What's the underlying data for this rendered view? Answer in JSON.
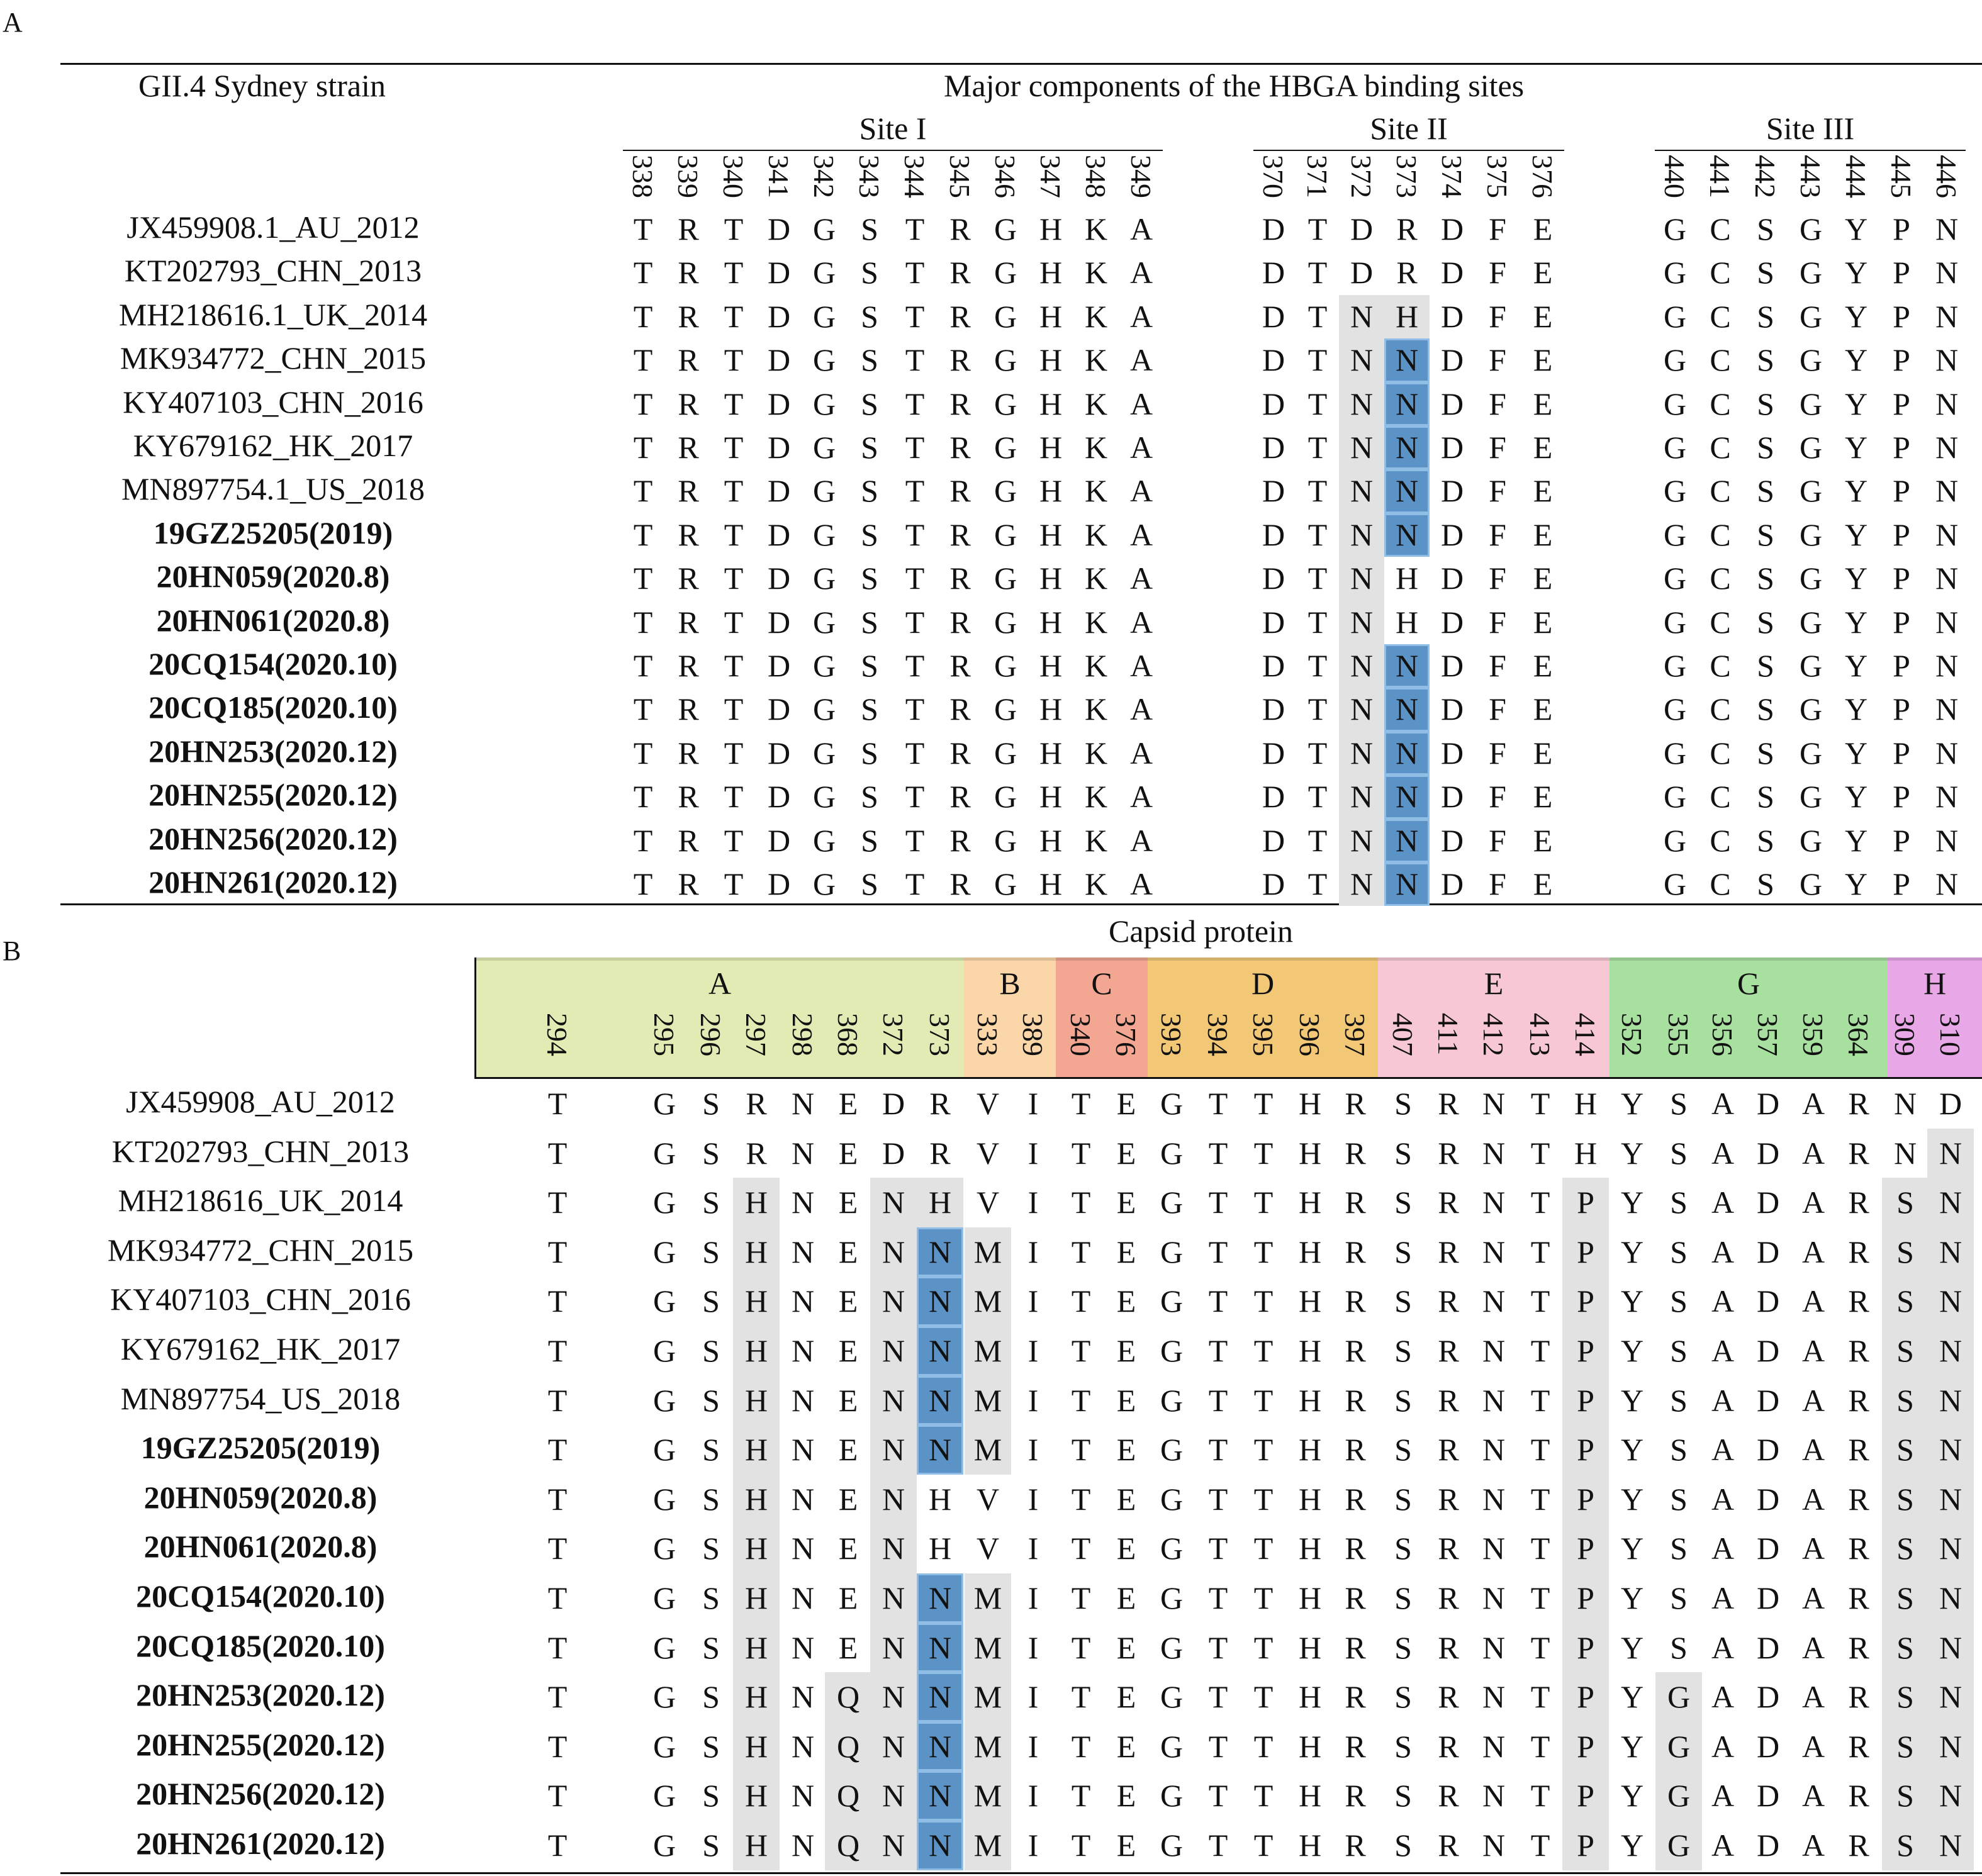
{
  "panel_a": {
    "letter": "A",
    "strain_header": "GII.4 Sydney strain",
    "main_header": "Major components of the HBGA binding sites",
    "sites": [
      {
        "name": "Site I",
        "positions": [
          "338",
          "339",
          "340",
          "341",
          "342",
          "343",
          "344",
          "345",
          "346",
          "347",
          "348",
          "349"
        ]
      },
      {
        "name": "Site II",
        "positions": [
          "370",
          "371",
          "372",
          "373",
          "374",
          "375",
          "376"
        ]
      },
      {
        "name": "Site III",
        "positions": [
          "440",
          "441",
          "442",
          "443",
          "444",
          "445",
          "446"
        ]
      }
    ],
    "rows": [
      {
        "strain": "JX459908.1_AU_2012",
        "bold": false,
        "site1": "TRTDGSTRGHKA",
        "site2": "DTDRDFE",
        "site3": "GCSGYPN"
      },
      {
        "strain": "KT202793_CHN_2013",
        "bold": false,
        "site1": "TRTDGSTRGHKA",
        "site2": "DTDRDFE",
        "site3": "GCSGYPN"
      },
      {
        "strain": "MH218616.1_UK_2014",
        "bold": false,
        "site1": "TRTDGSTRGHKA",
        "site2": "DTNHDFE",
        "site3": "GCSGYPN"
      },
      {
        "strain": "MK934772_CHN_2015",
        "bold": false,
        "site1": "TRTDGSTRGHKA",
        "site2": "DTNNDFE",
        "site3": "GCSGYPN"
      },
      {
        "strain": "KY407103_CHN_2016",
        "bold": false,
        "site1": "TRTDGSTRGHKA",
        "site2": "DTNNDFE",
        "site3": "GCSGYPN"
      },
      {
        "strain": "KY679162_HK_2017",
        "bold": false,
        "site1": "TRTDGSTRGHKA",
        "site2": "DTNNDFE",
        "site3": "GCSGYPN"
      },
      {
        "strain": "MN897754.1_US_2018",
        "bold": false,
        "site1": "TRTDGSTRGHKA",
        "site2": "DTNNDFE",
        "site3": "GCSGYPN"
      },
      {
        "strain": "19GZ25205(2019)",
        "bold": true,
        "site1": "TRTDGSTRGHKA",
        "site2": "DTNNDFE",
        "site3": "GCSGYPN"
      },
      {
        "strain": "20HN059(2020.8)",
        "bold": true,
        "site1": "TRTDGSTRGHKA",
        "site2": "DTNHDFE",
        "site3": "GCSGYPN"
      },
      {
        "strain": "20HN061(2020.8)",
        "bold": true,
        "site1": "TRTDGSTRGHKA",
        "site2": "DTNHDFE",
        "site3": "GCSGYPN"
      },
      {
        "strain": "20CQ154(2020.10)",
        "bold": true,
        "site1": "TRTDGSTRGHKA",
        "site2": "DTNNDFE",
        "site3": "GCSGYPN"
      },
      {
        "strain": "20CQ185(2020.10)",
        "bold": true,
        "site1": "TRTDGSTRGHKA",
        "site2": "DTNNDFE",
        "site3": "GCSGYPN"
      },
      {
        "strain": "20HN253(2020.12)",
        "bold": true,
        "site1": "TRTDGSTRGHKA",
        "site2": "DTNNDFE",
        "site3": "GCSGYPN"
      },
      {
        "strain": "20HN255(2020.12)",
        "bold": true,
        "site1": "TRTDGSTRGHKA",
        "site2": "DTNNDFE",
        "site3": "GCSGYPN"
      },
      {
        "strain": "20HN256(2020.12)",
        "bold": true,
        "site1": "TRTDGSTRGHKA",
        "site2": "DTNNDFE",
        "site3": "GCSGYPN"
      },
      {
        "strain": "20HN261(2020.12)",
        "bold": true,
        "site1": "TRTDGSTRGHKA",
        "site2": "DTNNDFE",
        "site3": "GCSGYPN"
      }
    ]
  },
  "panel_b": {
    "letter": "B",
    "main_header": "Capsid protein",
    "regions": [
      {
        "name": "A",
        "color": "#e3ebb4",
        "positions": [
          "294",
          "295",
          "296",
          "297",
          "298",
          "368",
          "372",
          "373"
        ]
      },
      {
        "name": "B",
        "color": "#fbd6a8",
        "positions": [
          "333",
          "389"
        ]
      },
      {
        "name": "C",
        "color": "#f3a691",
        "positions": [
          "340",
          "376"
        ]
      },
      {
        "name": "D",
        "color": "#f2c877",
        "positions": [
          "393",
          "394",
          "395",
          "396",
          "397"
        ]
      },
      {
        "name": "E",
        "color": "#f7c8d4",
        "positions": [
          "407",
          "411",
          "412",
          "413",
          "414"
        ]
      },
      {
        "name": "G",
        "color": "#a8e0a0",
        "positions": [
          "352",
          "355",
          "356",
          "357",
          "359",
          "364"
        ]
      },
      {
        "name": "H",
        "color": "#e8a8e8",
        "positions": [
          "309",
          "310"
        ]
      }
    ],
    "rows": [
      {
        "strain": "JX459908_AU_2012",
        "bold": false,
        "seq": "TGSRNEDRVITEGTTHRSRNTHYSADARND"
      },
      {
        "strain": "KT202793_CHN_2013",
        "bold": false,
        "seq": "TGSRNEDRVITEGTTHRSRNTHYSADARNN"
      },
      {
        "strain": "MH218616_UK_2014",
        "bold": false,
        "seq": "TGSHNENHVITEGTTHRSRNTPYSADARSN"
      },
      {
        "strain": "MK934772_CHN_2015",
        "bold": false,
        "seq": "TGSHNENNMITEGTTHRSRNTPYSADARSN"
      },
      {
        "strain": "KY407103_CHN_2016",
        "bold": false,
        "seq": "TGSHNENNMITEGTTHRSRNTPYSADARSN"
      },
      {
        "strain": "KY679162_HK_2017",
        "bold": false,
        "seq": "TGSHNENNMITEGTTHRSRNTPYSADARSN"
      },
      {
        "strain": "MN897754_US_2018",
        "bold": false,
        "seq": "TGSHNENNMITEGTTHRSRNTPYSADARSN"
      },
      {
        "strain": "19GZ25205(2019)",
        "bold": true,
        "seq": "TGSHNENNMITEGTTHRSRNTPYSADARSN"
      },
      {
        "strain": "20HN059(2020.8)",
        "bold": true,
        "seq": "TGSHNENHVITEGTTHRSRNTPYSADARSN"
      },
      {
        "strain": "20HN061(2020.8)",
        "bold": true,
        "seq": "TGSHNENHVITEGTTHRSRNTPYSADARSN"
      },
      {
        "strain": "20CQ154(2020.10)",
        "bold": true,
        "seq": "TGSHNENNMITEGTTHRSRNTPYSADARSN"
      },
      {
        "strain": "20CQ185(2020.10)",
        "bold": true,
        "seq": "TGSHNENNMITEGTTHRSRNTPYSADARSN"
      },
      {
        "strain": "20HN253(2020.12)",
        "bold": true,
        "seq": "TGSHNQNNMITEGTTHRSRNTPYGADARSN"
      },
      {
        "strain": "20HN255(2020.12)",
        "bold": true,
        "seq": "TGSHNQNNMITEGTTHRSRNTPYGADARSN"
      },
      {
        "strain": "20HN256(2020.12)",
        "bold": true,
        "seq": "TGSHNQNNMITEGTTHRSRNTPYGADARSN"
      },
      {
        "strain": "20HN261(2020.12)",
        "bold": true,
        "seq": "TGSHNQNNMITEGTTHRSRNTPYGADARSN"
      }
    ]
  }
}
